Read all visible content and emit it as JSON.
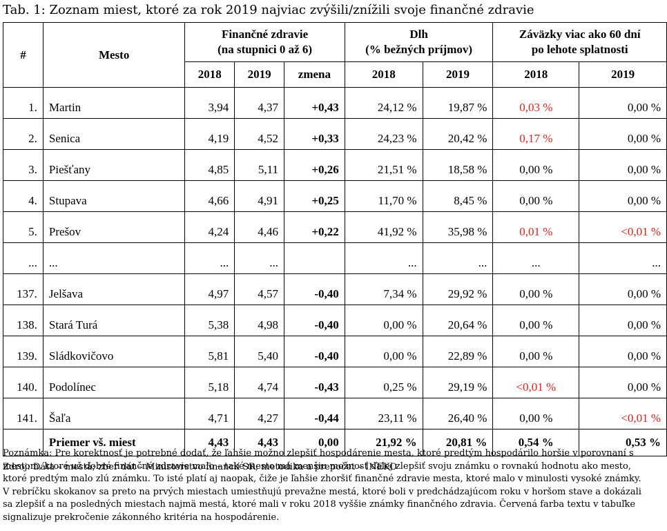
{
  "title": "Tab. 1: Zoznam miest, ktoré za rok 2019 najviac zvýšili/znížili svoje finančné zdravie",
  "headers": {
    "rank": "#",
    "city": "Mesto",
    "health_line1": "Finančné zdravie",
    "health_line2": "(na stupnici 0 až 6)",
    "debt_line1": "Dlh",
    "debt_line2": "(% bežných príjmov)",
    "liab_line1": "Záväzky viac ako 60 dní",
    "liab_line2": "po lehote splatnosti",
    "y2018": "2018",
    "y2019": "2019",
    "change": "zmena"
  },
  "rows": [
    {
      "rank": "1.",
      "city": "Martin",
      "h2018": "3,94",
      "h2019": "4,37",
      "change": "+0,43",
      "d2018": "24,12 %",
      "d2019": "19,87 %",
      "l2018": "0,03 %",
      "l2019": "0,00 %",
      "l2018_red": true,
      "l2019_red": false
    },
    {
      "rank": "2.",
      "city": "Senica",
      "h2018": "4,19",
      "h2019": "4,52",
      "change": "+0,33",
      "d2018": "24,23 %",
      "d2019": "20,42 %",
      "l2018": "0,17 %",
      "l2019": "0,00 %",
      "l2018_red": true,
      "l2019_red": false
    },
    {
      "rank": "3.",
      "city": "Piešťany",
      "h2018": "4,85",
      "h2019": "5,11",
      "change": "+0,26",
      "d2018": "21,51 %",
      "d2019": "18,58 %",
      "l2018": "0,00 %",
      "l2019": "0,00 %",
      "l2018_red": false,
      "l2019_red": false
    },
    {
      "rank": "4.",
      "city": "Stupava",
      "h2018": "4,66",
      "h2019": "4,91",
      "change": "+0,25",
      "d2018": "11,70 %",
      "d2019": "8,45 %",
      "l2018": "0,00 %",
      "l2019": "0,00 %",
      "l2018_red": false,
      "l2019_red": false
    },
    {
      "rank": "5.",
      "city": "Prešov",
      "h2018": "4,24",
      "h2019": "4,46",
      "change": "+0,22",
      "d2018": "41,92 %",
      "d2019": "35,98 %",
      "l2018": "0,01 %",
      "l2019": "<0,01 %",
      "l2018_red": true,
      "l2019_red": true
    },
    {
      "rank": "...",
      "city": "...",
      "h2018": "...",
      "h2019": "...",
      "change": "",
      "d2018": "...",
      "d2019": "...",
      "l2018": "...",
      "l2019": "...",
      "l2018_red": false,
      "l2019_red": false
    },
    {
      "rank": "137.",
      "city": "Jelšava",
      "h2018": "4,97",
      "h2019": "4,57",
      "change": "-0,40",
      "d2018": "7,34 %",
      "d2019": "29,92 %",
      "l2018": "0,00 %",
      "l2019": "0,00 %",
      "l2018_red": false,
      "l2019_red": false
    },
    {
      "rank": "138.",
      "city": "Stará Turá",
      "h2018": "5,38",
      "h2019": "4,98",
      "change": "-0,40",
      "d2018": "0,00 %",
      "d2019": "20,64 %",
      "l2018": "0,00 %",
      "l2019": "0,00 %",
      "l2018_red": false,
      "l2019_red": false
    },
    {
      "rank": "139.",
      "city": "Sládkovičovo",
      "h2018": "5,81",
      "h2019": "5,40",
      "change": "-0,40",
      "d2018": "0,00 %",
      "d2019": "22,89 %",
      "l2018": "0,00 %",
      "l2019": "0,00 %",
      "l2018_red": false,
      "l2019_red": false
    },
    {
      "rank": "140.",
      "city": "Podolínec",
      "h2018": "5,18",
      "h2019": "4,74",
      "change": "-0,43",
      "d2018": "0,25 %",
      "d2019": "29,19 %",
      "l2018": "<0,01 %",
      "l2019": "0,00 %",
      "l2018_red": true,
      "l2019_red": false
    },
    {
      "rank": "141.",
      "city": "Šaľa",
      "h2018": "4,71",
      "h2019": "4,27",
      "change": "-0,44",
      "d2018": "23,11 %",
      "d2019": "26,40 %",
      "l2018": "0,00 %",
      "l2019": "<0,01 %",
      "l2018_red": false,
      "l2019_red": true
    }
  ],
  "total": {
    "city": "Priemer vš. miest",
    "h2018": "4,43",
    "h2019": "4,43",
    "change": "0,00",
    "d2018": "21,92 %",
    "d2019": "20,81 %",
    "l2018": "0,54 %",
    "l2019": "0,53 %"
  },
  "source": "Zdroj: Dáta – mestá; zber dát – Ministerstvo financií SR; metodika a prepočet – INEKO",
  "note_lines": [
    "Poznámka: Pre korektnosť je potrebné dodať, že ľahšie možno zlepšiť hospodárenie mesta, ktoré predtým hospodárilo horšie v porovnaní s",
    "mestom, ktoré už dobré finančné zdravie malo – také mesto má menšiu možnosť ďalej zlepšiť svoju známku o rovnakú hodnotu ako mesto,",
    "ktoré predtým malo zlú známku. To isté platí aj naopak, čiže je ľahšie zhoršiť finančné zdravie mesta, ktoré malo v minulosti vysoké známky.",
    "V rebríčku skokanov sa preto na prvých miestach umiestňujú prevažne mestá, ktoré boli v predchádzajúcom roku v horšom stave a dokázali",
    "sa zlepšiť a na posledných miestach najmä mestá, ktoré mali v roku 2018 vyššie známky finančného zdravia. Červená farba textu v tabuľke",
    "signalizuje prekročenie zákonného kritéria na hospodárenie."
  ],
  "colors": {
    "red": "#e0201c"
  }
}
